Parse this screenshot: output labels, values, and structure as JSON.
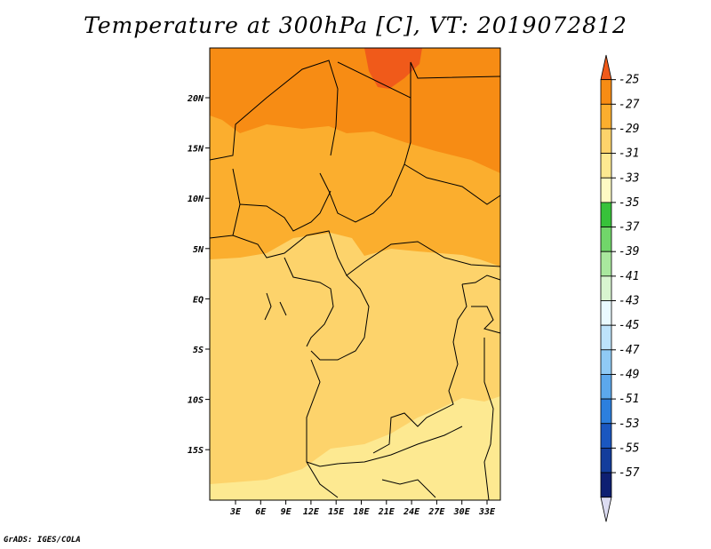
{
  "title": "Temperature at 300hPa [C], VT: 2019072812",
  "footer": "GrADS: IGES/COLA",
  "lat_ticks": [
    "20N",
    "15N",
    "10N",
    "5N",
    "EQ",
    "5S",
    "10S",
    "15S"
  ],
  "lon_ticks": [
    "3E",
    "6E",
    "9E",
    "12E",
    "15E",
    "18E",
    "21E",
    "24E",
    "27E",
    "30E",
    "33E"
  ],
  "colorbar": {
    "labels": [
      "-25",
      "-27",
      "-29",
      "-31",
      "-33",
      "-35",
      "-37",
      "-39",
      "-41",
      "-43",
      "-45",
      "-47",
      "-49",
      "-51",
      "-53",
      "-55",
      "-57"
    ],
    "colors": [
      "#f05a1a",
      "#f78c14",
      "#fbae2e",
      "#fdd36b",
      "#fde991",
      "#fefac3",
      "#37c23a",
      "#71d66a",
      "#a9e89e",
      "#d8f5d0",
      "#eafaff",
      "#bde3fb",
      "#8fcaf5",
      "#5ca8ec",
      "#2c7fde",
      "#1a57c0",
      "#133d9c",
      "#0e1f72",
      "#dcdcf2"
    ]
  },
  "map": {
    "colors": {
      "level_27_25": "#f05a1a",
      "level_29_27": "#f78c14",
      "level_31_29": "#fbae2e",
      "level_33_31": "#fdd36b",
      "level_35_33": "#fde991",
      "boundary": "#000000"
    }
  }
}
